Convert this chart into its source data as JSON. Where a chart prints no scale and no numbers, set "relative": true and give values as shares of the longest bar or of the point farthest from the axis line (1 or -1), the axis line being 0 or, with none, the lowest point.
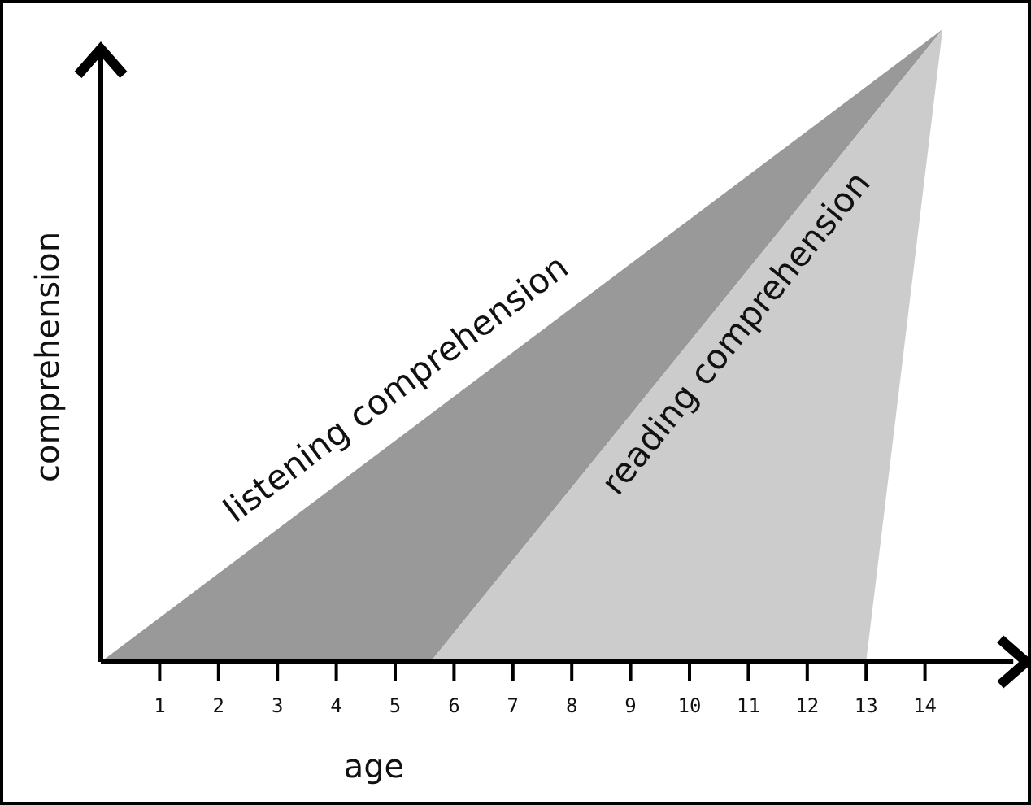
{
  "chart_data": {
    "type": "area",
    "relative": true,
    "xlabel": "age",
    "ylabel": "comprehension",
    "xlim": [
      0,
      15.5
    ],
    "xticks": [
      1,
      2,
      3,
      4,
      5,
      6,
      7,
      8,
      9,
      10,
      11,
      12,
      13,
      14
    ],
    "tick_labels": "x",
    "grid": false,
    "series": [
      {
        "name": "listening comprehension",
        "color": "#999999",
        "x": [
          0,
          14.3,
          5.6
        ],
        "values": [
          0,
          1,
          0
        ]
      },
      {
        "name": "reading comprehension",
        "color": "#cccccc",
        "x": [
          5.6,
          14.3,
          13
        ],
        "values": [
          0,
          1,
          0
        ]
      }
    ]
  }
}
